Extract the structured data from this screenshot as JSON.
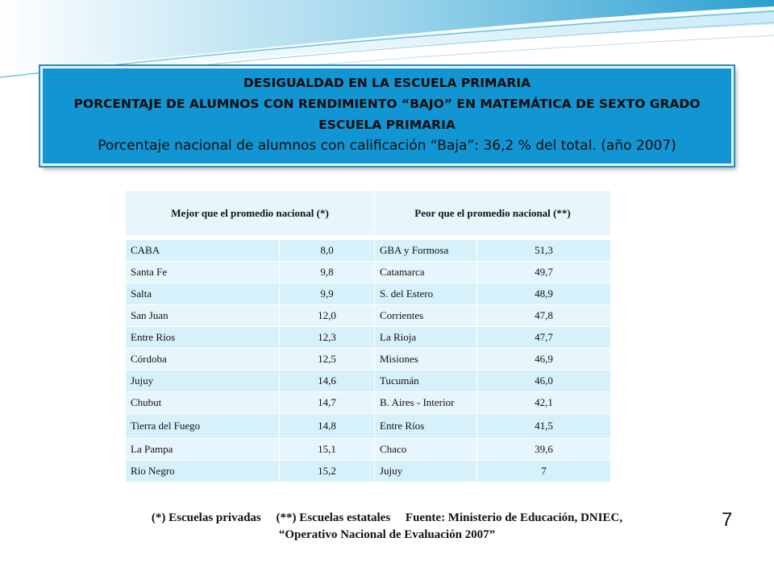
{
  "banner": {
    "line1": "DESIGUALDAD EN LA ESCUELA PRIMARIA",
    "line2": "PORCENTAJE DE ALUMNOS CON RENDIMIENTO “BAJO” EN MATEMÁTICA DE SEXTO GRADO",
    "line3": "ESCUELA PRIMARIA",
    "line4": "Porcentaje nacional de alumnos con calificación “Baja”:  36,2 % del total. (año 2007)"
  },
  "table": {
    "header_left": "Mejor que el promedio nacional (*)",
    "header_right": "Peor que el promedio nacional (**)",
    "rows": [
      {
        "left_name": "CABA",
        "left_value": "8,0",
        "right_name": "GBA y Formosa",
        "right_value": "51,3"
      },
      {
        "left_name": "Santa Fe",
        "left_value": "9,8",
        "right_name": "Catamarca",
        "right_value": "49,7"
      },
      {
        "left_name": "Salta",
        "left_value": "9,9",
        "right_name": "S. del Estero",
        "right_value": "48,9"
      },
      {
        "left_name": "San Juan",
        "left_value": "12,0",
        "right_name": "Corrientes",
        "right_value": "47,8"
      },
      {
        "left_name": "Entre Ríos",
        "left_value": "12,3",
        "right_name": "La Rioja",
        "right_value": "47,7"
      },
      {
        "left_name": "Córdoba",
        "left_value": "12,5",
        "right_name": "Misiones",
        "right_value": "46,9"
      },
      {
        "left_name": "Jujuy",
        "left_value": "14,6",
        "right_name": "Tucumán",
        "right_value": "46,0"
      },
      {
        "left_name": "Chubut",
        "left_value": "14,7",
        "right_name": "B. Aires - Interior",
        "right_value": "42,1"
      },
      {
        "left_name": "Tierra del Fuego",
        "left_value": "14,8",
        "right_name": "Entre Ríos",
        "right_value": "41,5"
      },
      {
        "left_name": "La Pampa",
        "left_value": "15,1",
        "right_name": "Chaco",
        "right_value": "39,6"
      },
      {
        "left_name": "Río Negro",
        "left_value": "15,2",
        "right_name": "Jujuy",
        "right_value": "7"
      }
    ]
  },
  "footer": {
    "line1": "(*) Escuelas privadas     (**) Escuelas estatales     Fuente: Ministerio de Educación, DNIEC,",
    "line2": "“Operativo  Nacional de Evaluación 2007”"
  },
  "page_number": "7",
  "colors": {
    "banner": "#1296d3",
    "cell": "#d7f1fb",
    "cell_alt": "#e6f6fc"
  }
}
